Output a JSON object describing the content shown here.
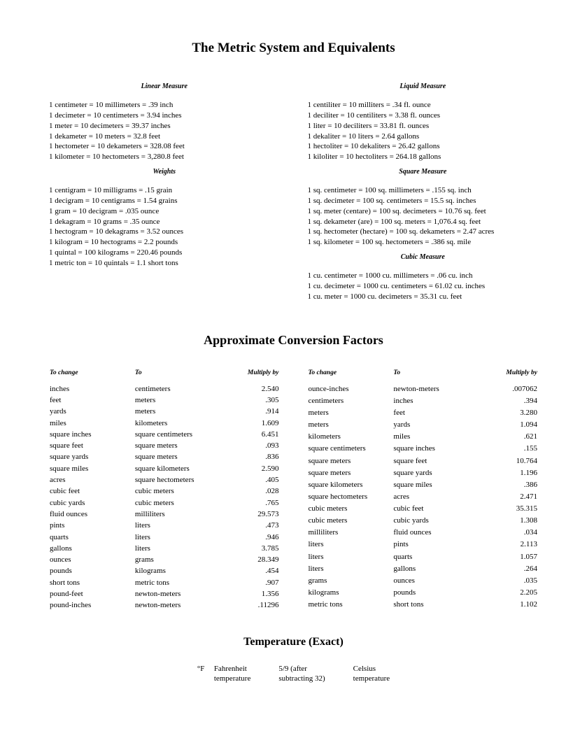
{
  "titles": {
    "main": "The Metric System and Equivalents",
    "conversion": "Approximate Conversion Factors",
    "temperature": "Temperature (Exact)"
  },
  "left_sections": [
    {
      "title": "Linear Measure",
      "lines": [
        "1 centimeter = 10 millimeters = .39 inch",
        "1 decimeter = 10 centimeters = 3.94 inches",
        "1 meter = 10 decimeters = 39.37 inches",
        "1 dekameter = 10 meters = 32.8 feet",
        "1 hectometer = 10 dekameters = 328.08 feet",
        "1 kilometer = 10 hectometers = 3,280.8 feet"
      ]
    },
    {
      "title": "Weights",
      "lines": [
        "1 centigram = 10 milligrams = .15 grain",
        "1 decigram = 10 centigrams = 1.54 grains",
        "1 gram = 10 decigram = .035 ounce",
        "1 dekagram = 10 grams = .35 ounce",
        "1 hectogram = 10 dekagrams = 3.52 ounces",
        "1 kilogram = 10 hectograms = 2.2 pounds",
        "1 quintal = 100 kilograms = 220.46 pounds",
        "1 metric ton = 10 quintals = 1.1 short tons"
      ]
    }
  ],
  "right_sections": [
    {
      "title": "Liquid Measure",
      "lines": [
        "1 centiliter = 10 milliters = .34 fl. ounce",
        "1 deciliter = 10 centiliters = 3.38 fl. ounces",
        "1 liter = 10 deciliters = 33.81 fl. ounces",
        "1 dekaliter = 10 liters = 2.64 gallons",
        "1 hectoliter = 10 dekaliters = 26.42 gallons",
        "1 kiloliter = 10 hectoliters = 264.18 gallons"
      ]
    },
    {
      "title": "Square Measure",
      "lines": [
        "1 sq. centimeter = 100 sq. millimeters = .155 sq. inch",
        "1 sq. decimeter = 100 sq. centimeters = 15.5 sq. inches",
        "1 sq. meter (centare) = 100 sq. decimeters = 10.76 sq. feet",
        "1 sq. dekameter (are) = 100 sq. meters = 1,076.4 sq. feet",
        "1 sq. hectometer (hectare) = 100 sq. dekameters = 2.47 acres",
        "1 sq. kilometer = 100 sq. hectometers = .386 sq. mile"
      ]
    },
    {
      "title": "Cubic Measure",
      "lines": [
        "1 cu. centimeter = 1000 cu. millimeters = .06 cu. inch",
        "1 cu. decimeter = 1000 cu. centimeters = 61.02 cu. inches",
        "1 cu. meter = 1000 cu. decimeters = 35.31 cu. feet"
      ]
    }
  ],
  "conv_headers": [
    "To change",
    "To",
    "Multiply by"
  ],
  "conv_left": [
    [
      "inches",
      "centimeters",
      "2.540"
    ],
    [
      "feet",
      "meters",
      ".305"
    ],
    [
      "yards",
      "meters",
      ".914"
    ],
    [
      "miles",
      "kilometers",
      "1.609"
    ],
    [
      "square inches",
      "square centimeters",
      "6.451"
    ],
    [
      "square feet",
      "square meters",
      ".093"
    ],
    [
      "square yards",
      "square meters",
      ".836"
    ],
    [
      "square miles",
      "square kilometers",
      "2.590"
    ],
    [
      "acres",
      "square hectometers",
      ".405"
    ],
    [
      "cubic feet",
      "cubic meters",
      ".028"
    ],
    [
      "cubic yards",
      "cubic meters",
      ".765"
    ],
    [
      "fluid ounces",
      "milliliters",
      "29.573"
    ],
    [
      "pints",
      "liters",
      ".473"
    ],
    [
      "quarts",
      "liters",
      ".946"
    ],
    [
      "gallons",
      "liters",
      "3.785"
    ],
    [
      "ounces",
      "grams",
      "28.349"
    ],
    [
      "pounds",
      "kilograms",
      ".454"
    ],
    [
      "short tons",
      "metric tons",
      ".907"
    ],
    [
      "pound-feet",
      "newton-meters",
      "1.356"
    ],
    [
      "pound-inches",
      "newton-meters",
      ".11296"
    ]
  ],
  "conv_right": [
    [
      "ounce-inches",
      "newton-meters",
      ".007062"
    ],
    [
      "centimeters",
      "inches",
      ".394"
    ],
    [
      "meters",
      "feet",
      "3.280"
    ],
    [
      "meters",
      "yards",
      "1.094"
    ],
    [
      "kilometers",
      "miles",
      ".621"
    ],
    [
      "square centimeters",
      "square inches",
      ".155"
    ],
    [
      "square meters",
      "square feet",
      "10.764"
    ],
    [
      "square meters",
      "square yards",
      "1.196"
    ],
    [
      "square kilometers",
      "square miles",
      ".386"
    ],
    [
      "square hectometers",
      "acres",
      "2.471"
    ],
    [
      "cubic meters",
      "cubic feet",
      "35.315"
    ],
    [
      "cubic meters",
      "cubic yards",
      "1.308"
    ],
    [
      "milliliters",
      "fluid ounces",
      ".034"
    ],
    [
      "liters",
      "pints",
      "2.113"
    ],
    [
      "liters",
      "quarts",
      "1.057"
    ],
    [
      "liters",
      "gallons",
      ".264"
    ],
    [
      "grams",
      "ounces",
      ".035"
    ],
    [
      "kilograms",
      "pounds",
      "2.205"
    ],
    [
      "metric tons",
      "short tons",
      "1.102"
    ]
  ],
  "temperature": {
    "symbol": "°F",
    "from1": "Fahrenheit",
    "from2": "temperature",
    "mid1": "5/9 (after",
    "mid2": "subtracting 32)",
    "to1": "Celsius",
    "to2": "temperature"
  }
}
